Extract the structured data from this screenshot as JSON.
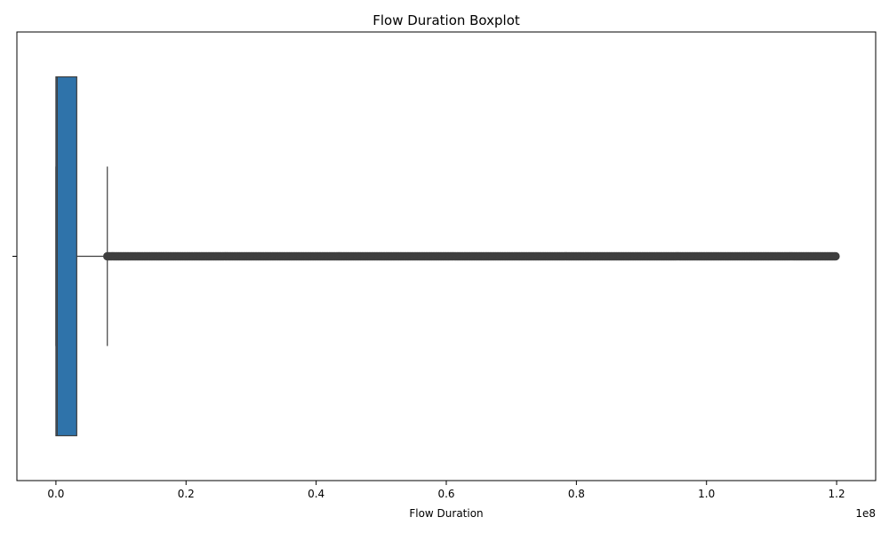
{
  "chart_data": {
    "type": "boxplot",
    "orientation": "horizontal",
    "title": "Flow Duration Boxplot",
    "xlabel": "Flow Duration",
    "ylabel": "",
    "x_offset_label": "1e8",
    "xlim": [
      -0.06,
      1.26
    ],
    "x_ticks": [
      0.0,
      0.2,
      0.4,
      0.6,
      0.8,
      1.0,
      1.2
    ],
    "x_tick_labels": [
      "0.0",
      "0.2",
      "0.4",
      "0.6",
      "0.8",
      "1.0",
      "1.2"
    ],
    "y_ticks": [
      ""
    ],
    "grid": false,
    "legend": "none",
    "box": {
      "min": 0.0,
      "q1": 0.0,
      "median": 0.002,
      "q3": 0.032,
      "whisker_low": 0.0,
      "whisker_high": 0.079,
      "outliers_range": [
        0.079,
        1.2
      ]
    },
    "colors": {
      "box_fill": "#2f73aa",
      "box_edge": "#3f3f3f",
      "outlier": "#3f3f3f"
    }
  }
}
